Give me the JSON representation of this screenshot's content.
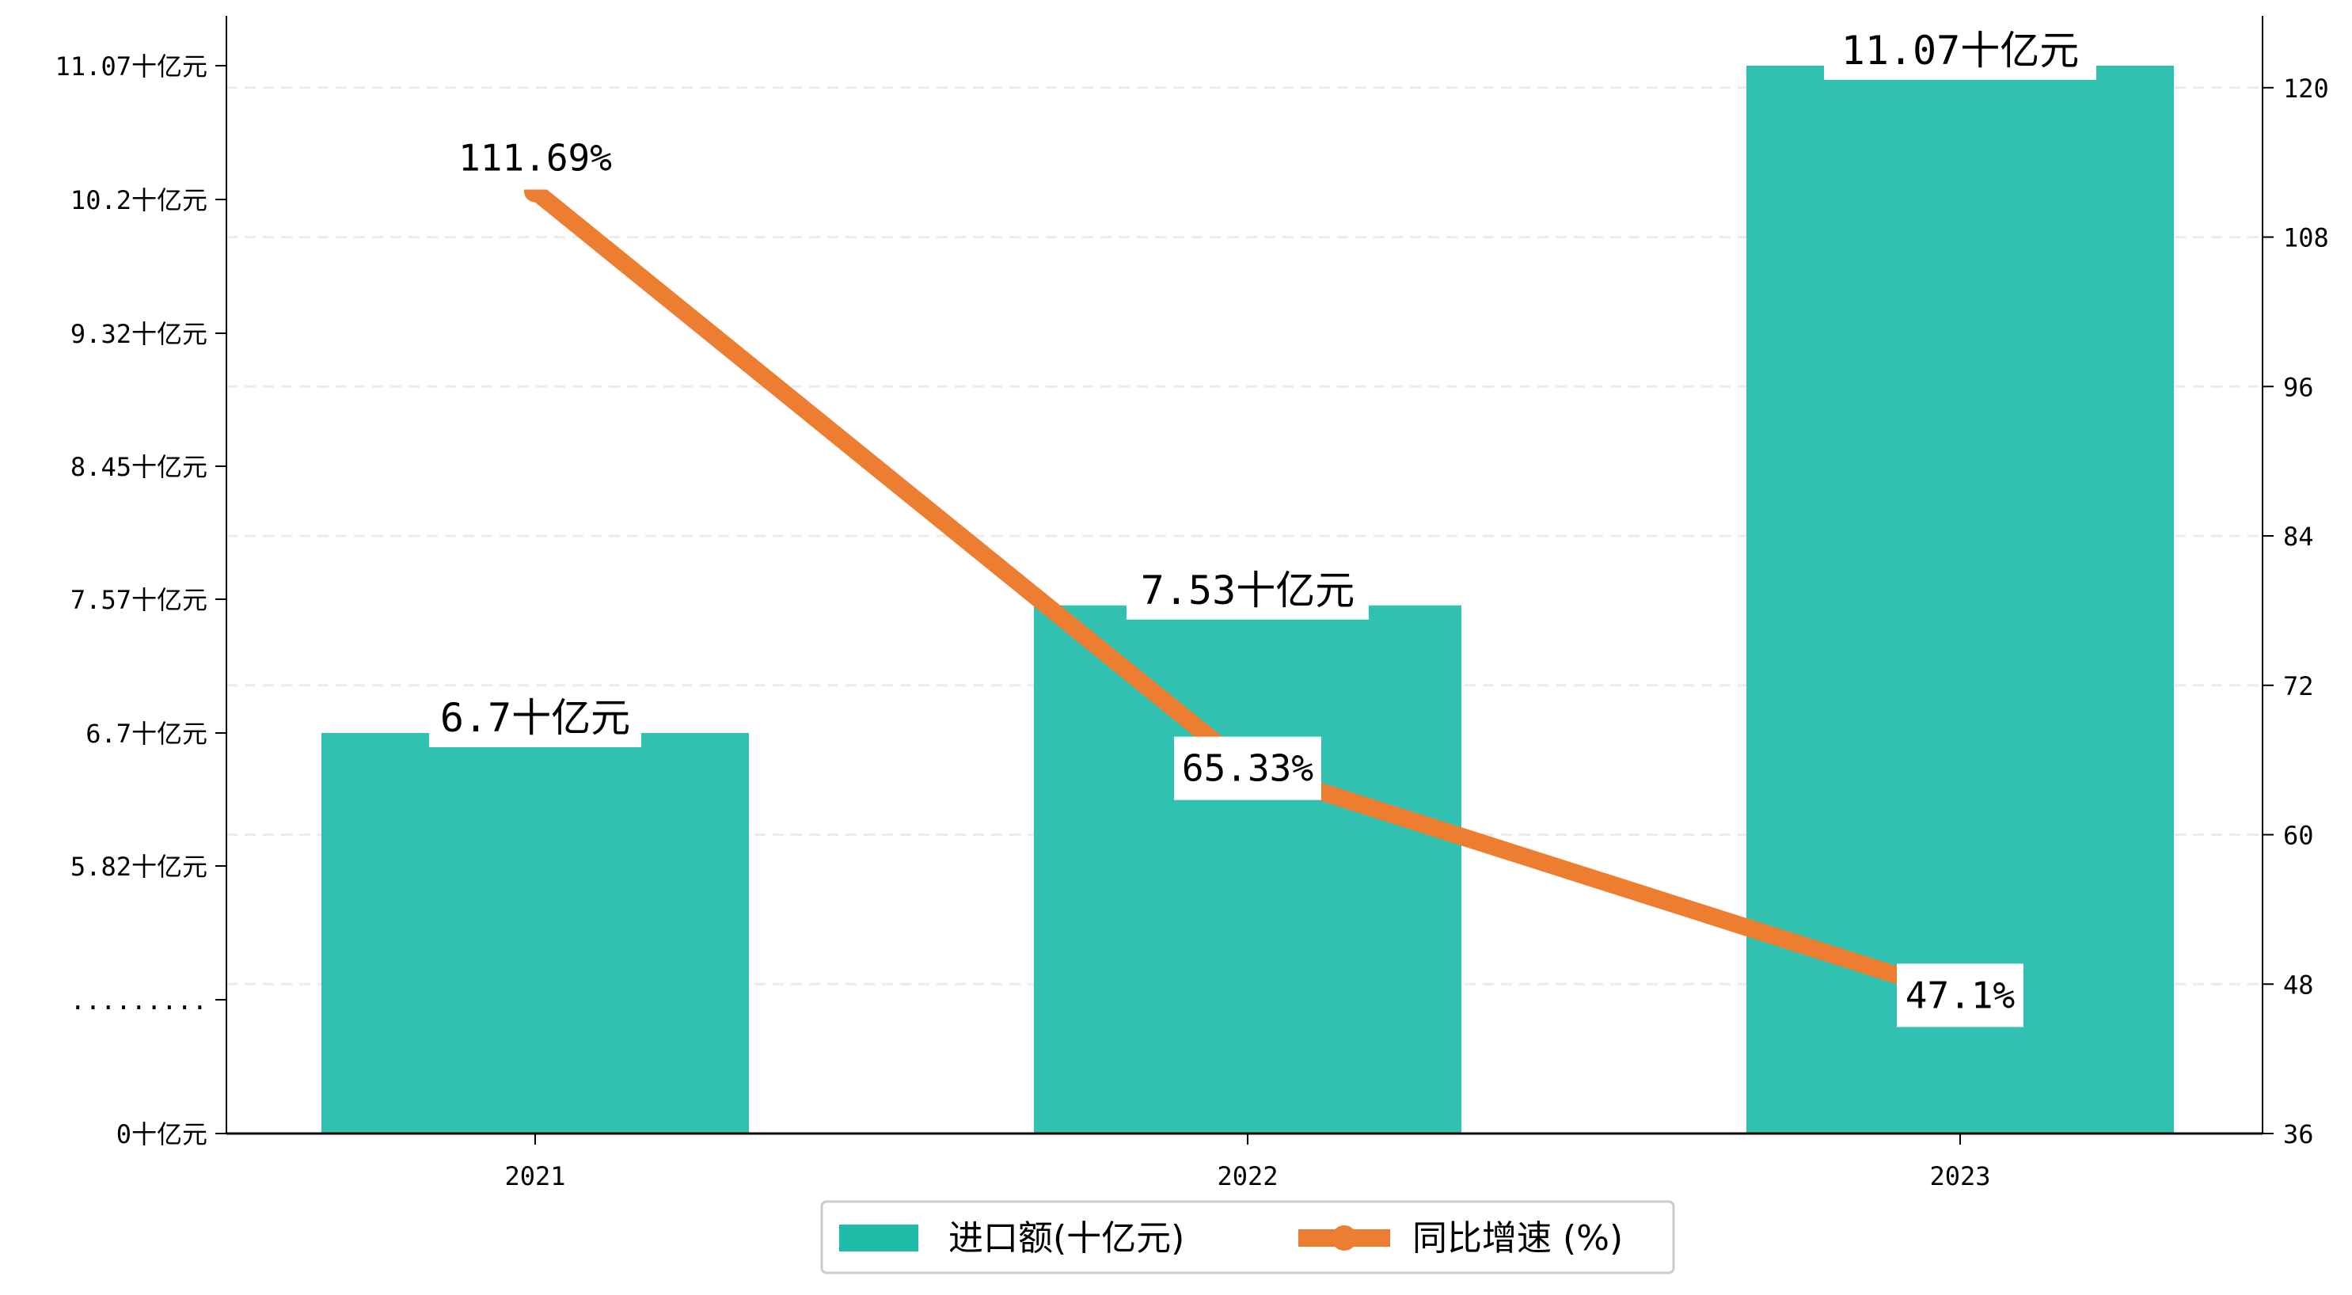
{
  "chart_data": {
    "type": "bar",
    "categories": [
      "2021",
      "2022",
      "2023"
    ],
    "series": [
      {
        "name": "进口额(十亿元)",
        "type": "bar",
        "axis": "left",
        "values": [
          6.7,
          7.53,
          11.07
        ],
        "labels": [
          "6.7十亿元",
          "7.53十亿元",
          "11.07十亿元"
        ],
        "color": "#20bca9"
      },
      {
        "name": "同比增速 (%)",
        "type": "line",
        "axis": "right",
        "values": [
          111.69,
          65.33,
          47.1
        ],
        "labels": [
          "111.69%",
          "65.33%",
          "47.1%"
        ],
        "color": "#ed7d31"
      }
    ],
    "y_left": {
      "break": true,
      "ticks": [
        {
          "value": 0,
          "label": "0十亿元"
        },
        {
          "value": 4.95,
          "label": "........."
        },
        {
          "value": 5.82,
          "label": "5.82十亿元"
        },
        {
          "value": 6.7,
          "label": "6.7十亿元"
        },
        {
          "value": 7.57,
          "label": "7.57十亿元"
        },
        {
          "value": 8.45,
          "label": "8.45十亿元"
        },
        {
          "value": 9.32,
          "label": "9.32十亿元"
        },
        {
          "value": 10.2,
          "label": "10.2十亿元"
        },
        {
          "value": 11.07,
          "label": "11.07十亿元"
        }
      ]
    },
    "y_right": {
      "ylim": [
        36,
        124.5
      ],
      "ticks": [
        36,
        48,
        60,
        72,
        84,
        96,
        108,
        120
      ]
    },
    "grid": true,
    "legend": "bottom-center"
  }
}
